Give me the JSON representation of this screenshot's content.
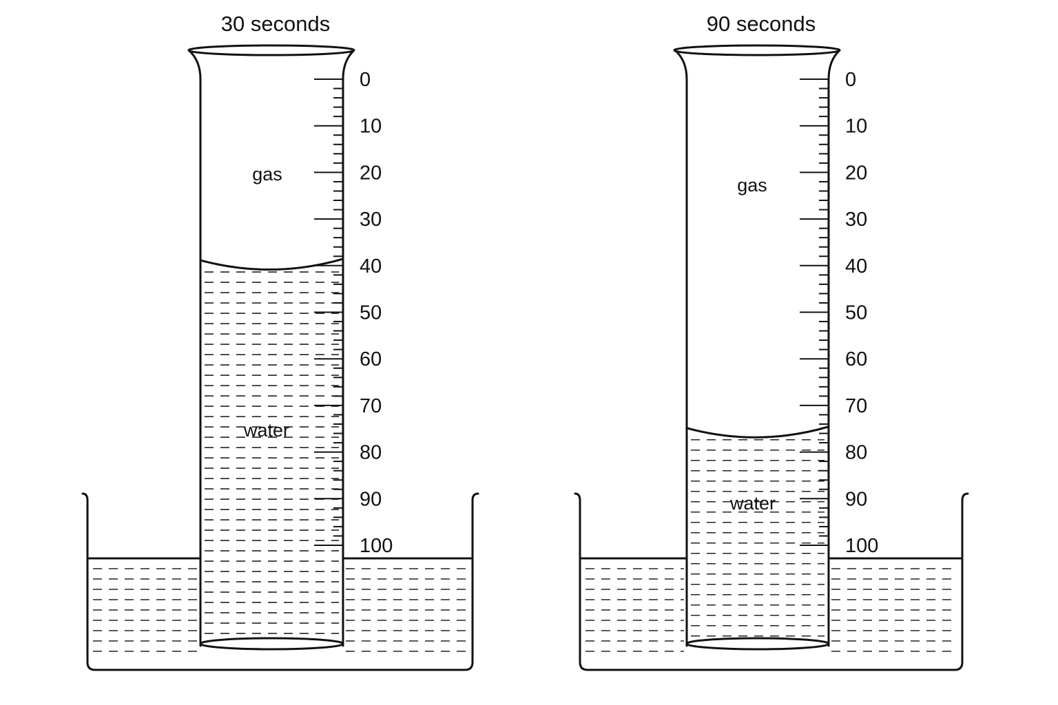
{
  "apparatus": [
    {
      "title": "30 seconds",
      "gas_label": "gas",
      "water_label": "water",
      "gas_volume_reading": 39
    },
    {
      "title": "90 seconds",
      "gas_label": "gas",
      "water_label": "water",
      "gas_volume_reading": 75
    }
  ],
  "scale_labels": [
    "0",
    "10",
    "20",
    "30",
    "40",
    "50",
    "60",
    "70",
    "80",
    "90",
    "100"
  ]
}
